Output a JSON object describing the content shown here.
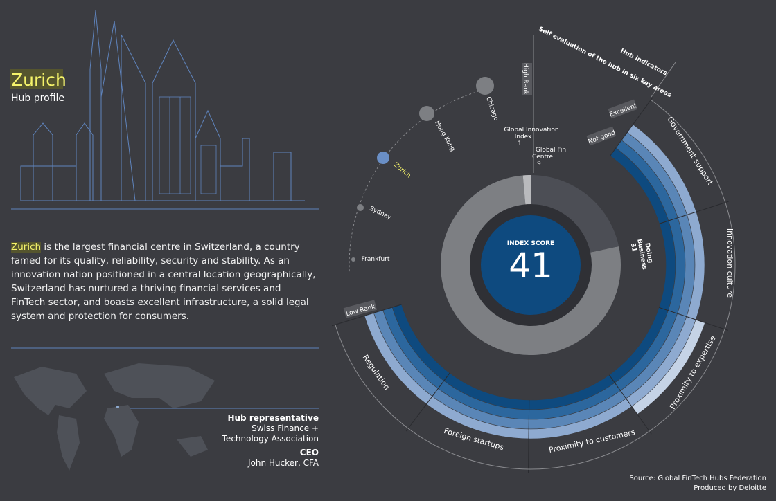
{
  "header": {
    "title": "Zurich",
    "subtitle": "Hub profile"
  },
  "description": {
    "highlight": "Zurich",
    "text": " is the largest financial centre in Switzerland, a country famed for its quality, reliability, security and stability. As an innovation nation positioned in a central location geographically, Switzerland has nurtured a thriving financial services and FinTech sector, and boasts excellent infrastructure, a solid legal system and protection for consumers."
  },
  "representative": {
    "label": "Hub representative",
    "name_lines": [
      "Swiss Finance +",
      "Technology Association"
    ]
  },
  "ceo": {
    "label": "CEO",
    "name": "John Hucker, CFA"
  },
  "footer": {
    "source": "Source: Global FinTech Hubs Federation",
    "produced": "Produced by Deloitte"
  },
  "index": {
    "label": "INDEX SCORE",
    "score": "41"
  },
  "rankings": [
    {
      "label_lines": [
        "Global Innovation",
        "Index"
      ],
      "value": "1"
    },
    {
      "label_lines": [
        "Global Fin",
        "Centre"
      ],
      "value": "9"
    },
    {
      "label_lines": [
        "Doing",
        "Business"
      ],
      "value": "31"
    }
  ],
  "rank_scale": {
    "high": "High Rank",
    "low": "Low Rank",
    "hubs": [
      "Chicago",
      "Hong Kong",
      "Zurich",
      "Sydney",
      "Frankfurt"
    ]
  },
  "indicators": {
    "title": "Hub indicators",
    "subtitle": "Self evaluation of the hub in six key areas",
    "excellent": "Excellent",
    "not_good": "Not good",
    "areas": [
      "Government support",
      "Innovation culture",
      "Proximity to expertise",
      "Proximity to customers",
      "Foreign startups",
      "Regulation"
    ]
  }
}
